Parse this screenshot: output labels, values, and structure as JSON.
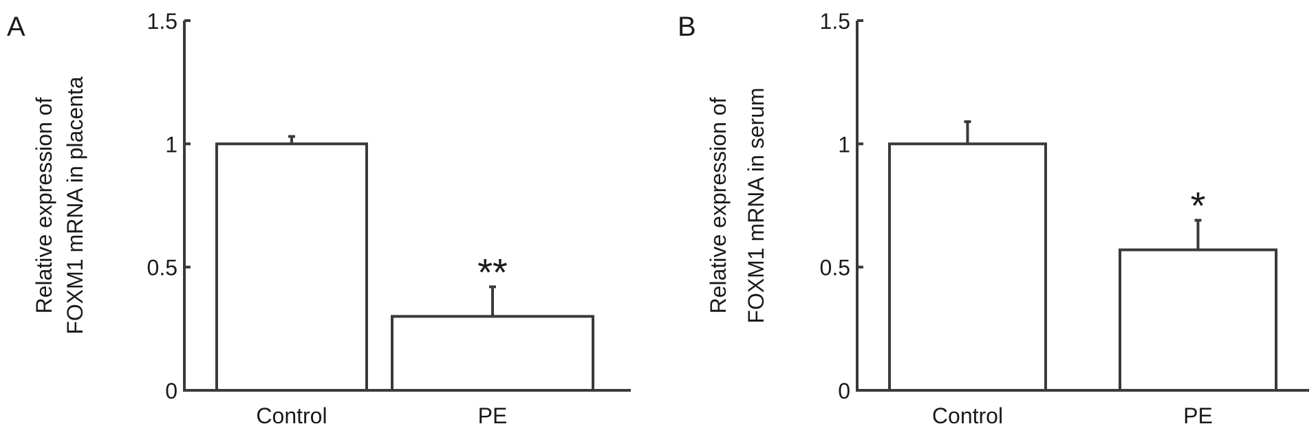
{
  "chart_data": [
    {
      "panel_label": "A",
      "type": "bar",
      "categories": [
        "Control",
        "PE"
      ],
      "values": [
        1.0,
        0.3
      ],
      "errors": [
        0.03,
        0.12
      ],
      "significance": [
        "",
        "**"
      ],
      "title": "",
      "xlabel": "",
      "ylabel_lines": [
        "Relative expression of",
        "FOXM1 mRNA in placenta"
      ],
      "ylim": [
        0,
        1.5
      ],
      "yticks": [
        {
          "value": 0,
          "label": "0"
        },
        {
          "value": 0.5,
          "label": "0.5"
        },
        {
          "value": 1,
          "label": "1"
        },
        {
          "value": 1.5,
          "label": "1.5"
        }
      ],
      "grid": false
    },
    {
      "panel_label": "B",
      "type": "bar",
      "categories": [
        "Control",
        "PE"
      ],
      "values": [
        1.0,
        0.57
      ],
      "errors": [
        0.09,
        0.12
      ],
      "significance": [
        "",
        "*"
      ],
      "title": "",
      "xlabel": "",
      "ylabel_lines": [
        "Relative expression of",
        "FOXM1 mRNA in serum"
      ],
      "ylim": [
        0,
        1.5
      ],
      "yticks": [
        {
          "value": 0,
          "label": "0"
        },
        {
          "value": 0.5,
          "label": "0.5"
        },
        {
          "value": 1,
          "label": "1"
        },
        {
          "value": 1.5,
          "label": "1.5"
        }
      ],
      "grid": false
    }
  ],
  "colors": {
    "axis": "#3a3a3a",
    "bar_fill": "#ffffff",
    "bar_edge": "#3a3a3a",
    "text": "#1a1a1a"
  }
}
